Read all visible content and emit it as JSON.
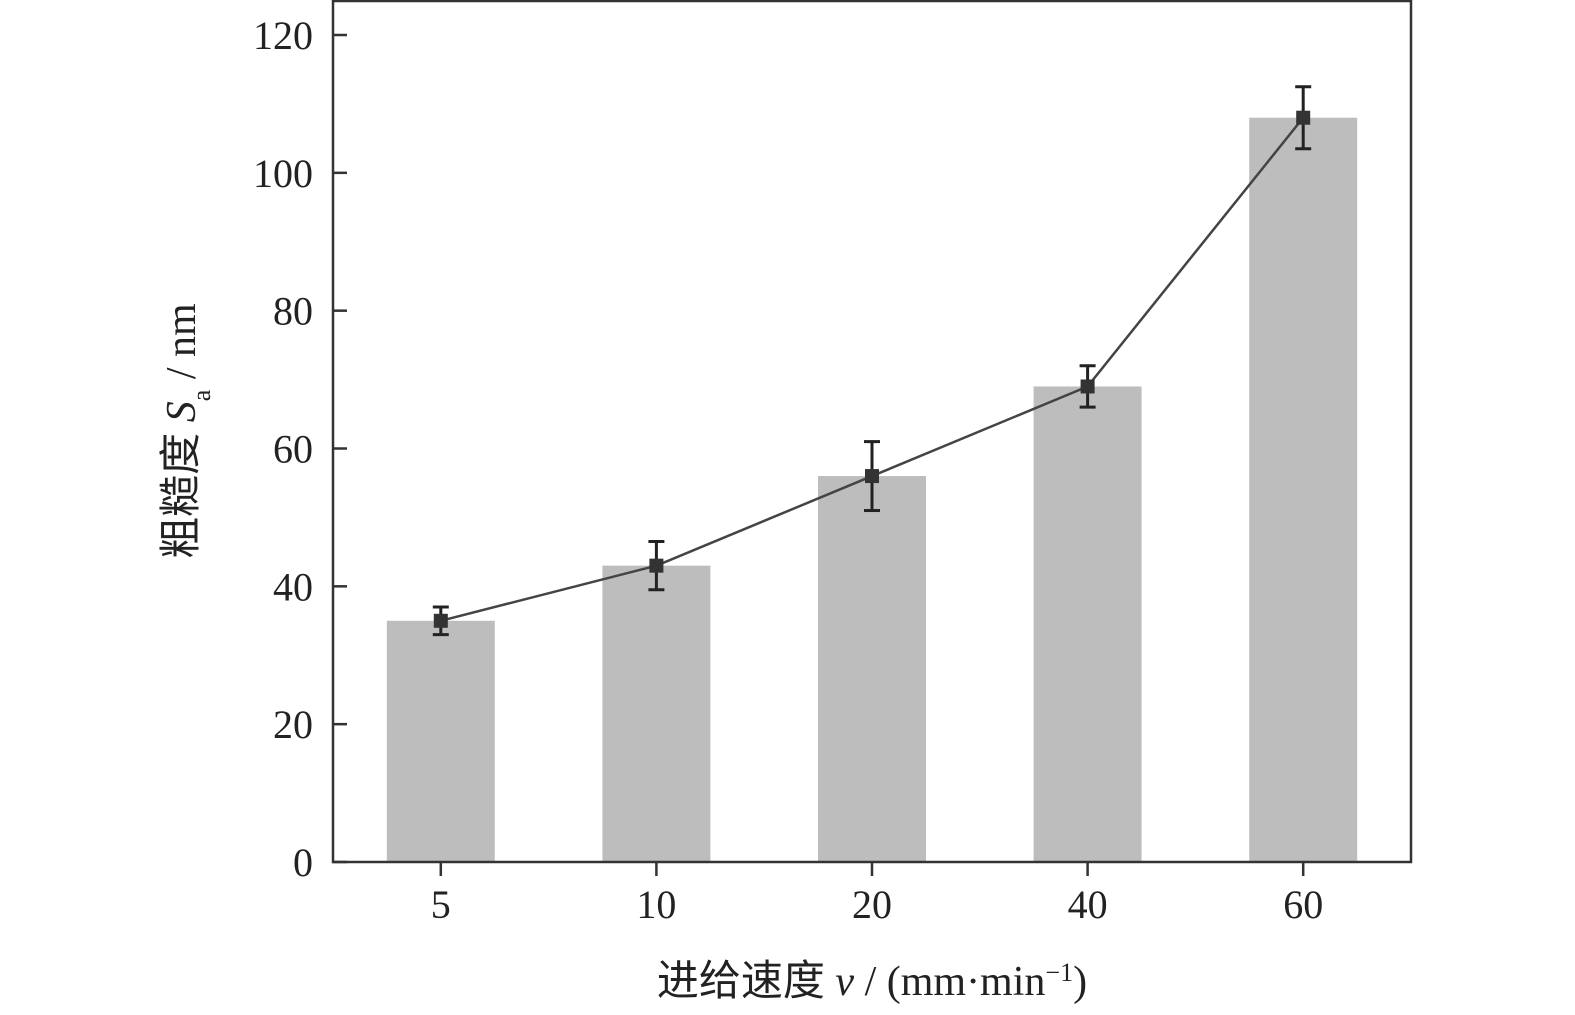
{
  "chart_data": {
    "type": "bar",
    "categories": [
      "5",
      "10",
      "20",
      "40",
      "60"
    ],
    "series": [
      {
        "values": [
          35,
          43,
          56,
          69,
          108
        ],
        "error": [
          2,
          3.5,
          5,
          3,
          4.5
        ],
        "bar_color": "#bdbdbd",
        "line_color": "#444444",
        "overlay": "line-with-square-markers"
      }
    ],
    "ylim": [
      0,
      120
    ],
    "yticks": [
      0,
      20,
      40,
      60,
      80,
      100,
      120
    ],
    "xlabel": {
      "prefix": "进给速度 ",
      "var": "v",
      "unit_open": " / (mm·min",
      "sup": "−1",
      "unit_close": ")"
    },
    "ylabel": {
      "prefix": "粗糙度 ",
      "var": "S",
      "sub": "a",
      "unit": " / nm"
    },
    "grid": false,
    "legend": "none"
  }
}
